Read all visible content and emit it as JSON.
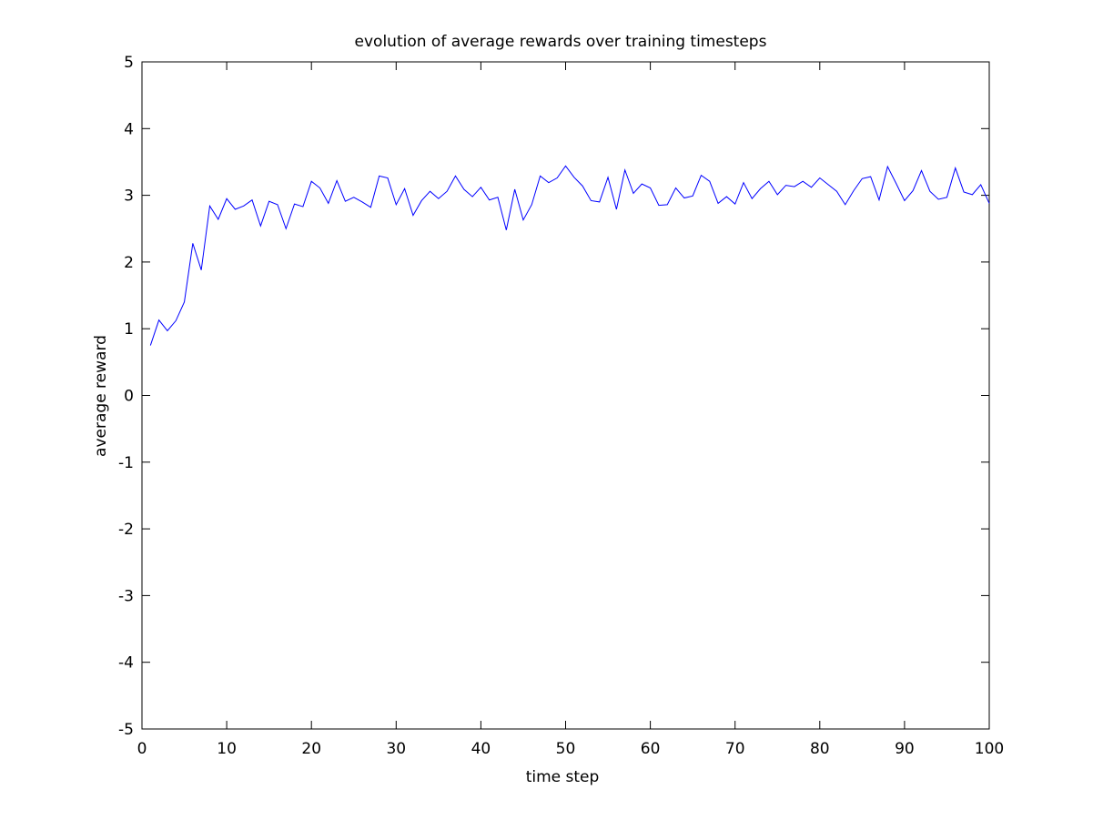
{
  "chart_data": {
    "type": "line",
    "title": "evolution of average rewards over training timesteps",
    "xlabel": "time step",
    "ylabel": "average reward",
    "xlim": [
      0,
      100
    ],
    "ylim": [
      -5,
      5
    ],
    "xticks": [
      0,
      10,
      20,
      30,
      40,
      50,
      60,
      70,
      80,
      90,
      100
    ],
    "yticks": [
      -5,
      -4,
      -3,
      -2,
      -1,
      0,
      1,
      2,
      3,
      4,
      5
    ],
    "grid": false,
    "legend": "none",
    "series": [
      {
        "color": "#0000ff",
        "x": [
          1,
          2,
          3,
          4,
          5,
          6,
          7,
          8,
          9,
          10,
          11,
          12,
          13,
          14,
          15,
          16,
          17,
          18,
          19,
          20,
          21,
          22,
          23,
          24,
          25,
          26,
          27,
          28,
          29,
          30,
          31,
          32,
          33,
          34,
          35,
          36,
          37,
          38,
          39,
          40,
          41,
          42,
          43,
          44,
          45,
          46,
          47,
          48,
          49,
          50,
          51,
          52,
          53,
          54,
          55,
          56,
          57,
          58,
          59,
          60,
          61,
          62,
          63,
          64,
          65,
          66,
          67,
          68,
          69,
          70,
          71,
          72,
          73,
          74,
          75,
          76,
          77,
          78,
          79,
          80,
          81,
          82,
          83,
          84,
          85,
          86,
          87,
          88,
          89,
          90,
          91,
          92,
          93,
          94,
          95,
          96,
          97,
          98,
          99,
          100
        ],
        "y": [
          0.75,
          1.13,
          0.97,
          1.12,
          1.4,
          2.28,
          1.88,
          2.84,
          2.64,
          2.95,
          2.79,
          2.84,
          2.93,
          2.54,
          2.91,
          2.86,
          2.5,
          2.87,
          2.83,
          3.21,
          3.11,
          2.88,
          3.22,
          2.91,
          2.97,
          2.9,
          2.82,
          3.29,
          3.26,
          2.86,
          3.1,
          2.7,
          2.92,
          3.06,
          2.95,
          3.06,
          3.29,
          3.09,
          2.98,
          3.12,
          2.93,
          2.97,
          2.48,
          3.09,
          2.63,
          2.86,
          3.29,
          3.19,
          3.26,
          3.44,
          3.27,
          3.14,
          2.92,
          2.9,
          3.27,
          2.79,
          3.38,
          3.03,
          3.17,
          3.11,
          2.85,
          2.86,
          3.11,
          2.96,
          2.99,
          3.3,
          3.21,
          2.88,
          2.98,
          2.87,
          3.19,
          2.95,
          3.1,
          3.21,
          3.01,
          3.15,
          3.13,
          3.21,
          3.12,
          3.26,
          3.16,
          3.06,
          2.86,
          3.07,
          3.25,
          3.28,
          2.93,
          3.43,
          3.18,
          2.92,
          3.07,
          3.37,
          3.06,
          2.94,
          2.97,
          3.41,
          3.05,
          3.01,
          3.16,
          2.88
        ]
      }
    ]
  }
}
